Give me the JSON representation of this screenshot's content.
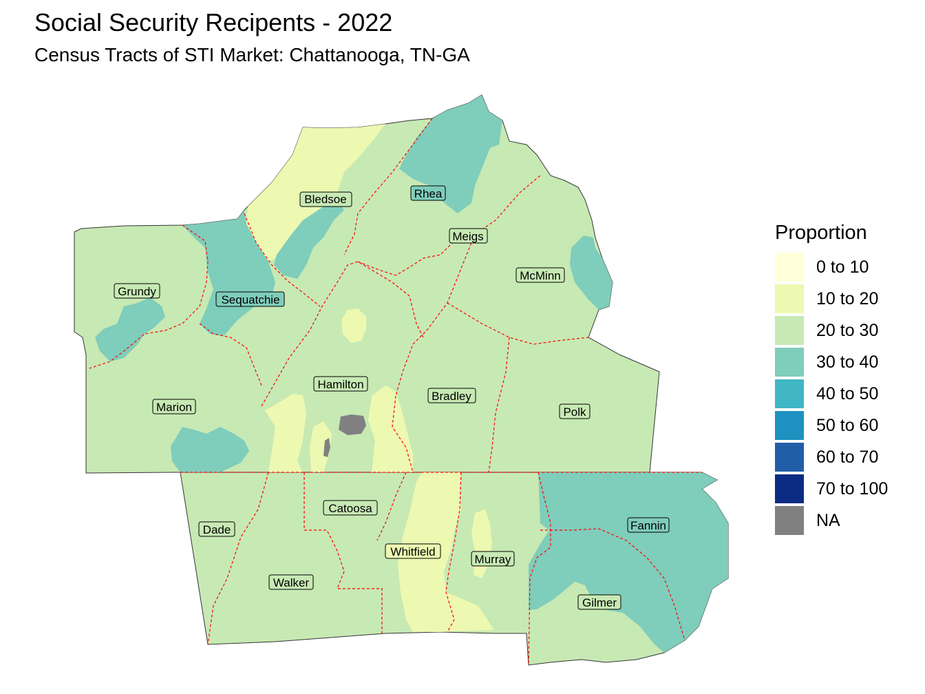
{
  "title": "Social Security Recipents - 2022",
  "subtitle": "Census Tracts of STI Market: Chattanooga, TN-GA",
  "legend": {
    "title": "Proportion",
    "items": [
      {
        "label": "0 to 10",
        "color": "#ffffd9"
      },
      {
        "label": "10 to 20",
        "color": "#edf8b1"
      },
      {
        "label": "20 to 30",
        "color": "#c7e9b4"
      },
      {
        "label": "30 to 40",
        "color": "#7fcdbb"
      },
      {
        "label": "40 to 50",
        "color": "#41b6c4"
      },
      {
        "label": "50 to 60",
        "color": "#1d91c0"
      },
      {
        "label": "60 to 70",
        "color": "#225ea8"
      },
      {
        "label": "70 to 100",
        "color": "#0c2c84"
      },
      {
        "label": "NA",
        "color": "#808080"
      }
    ]
  },
  "counties": {
    "bledsoe": "Bledsoe",
    "rhea": "Rhea",
    "meigs": "Meigs",
    "mcminn": "McMinn",
    "grundy": "Grundy",
    "sequatchie": "Sequatchie",
    "hamilton": "Hamilton",
    "bradley": "Bradley",
    "polk": "Polk",
    "marion": "Marion",
    "catoosa": "Catoosa",
    "dade": "Dade",
    "whitfield": "Whitfield",
    "murray": "Murray",
    "fannin": "Fannin",
    "walker": "Walker",
    "gilmer": "Gilmer"
  }
}
